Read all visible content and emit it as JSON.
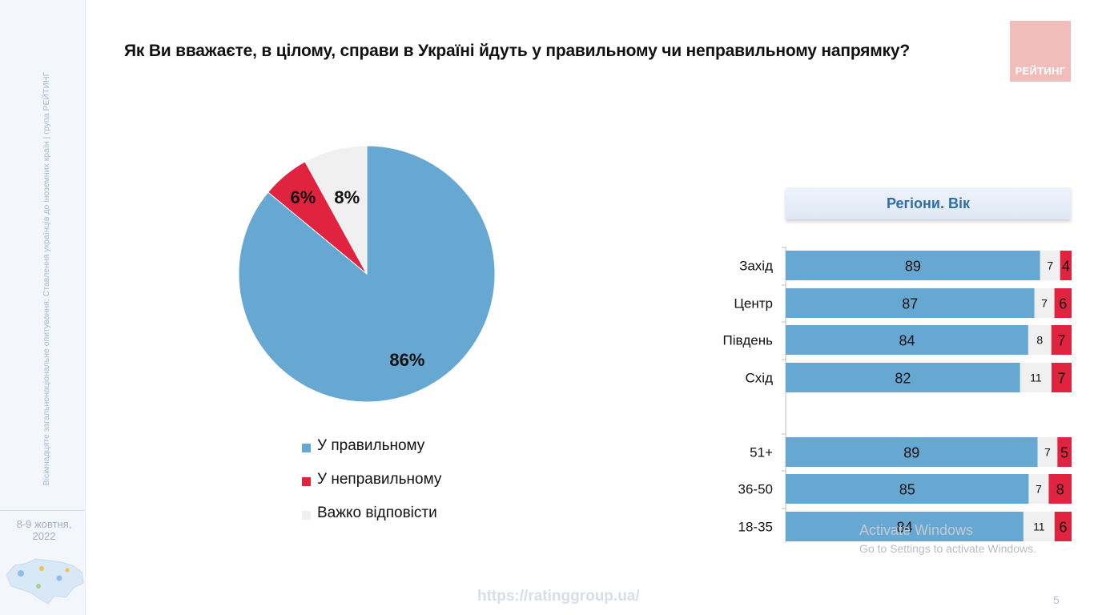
{
  "sidebar": {
    "vertical_text": "Вісімнадцяте загальнонаціональне опитування: Ставлення українців до іноземних країн | група РЕЙТИНГ",
    "date_line1": "8-9 жовтня,",
    "date_line2": "2022"
  },
  "title": "Як Ви вважаєте, в цілому, справи в Україні йдуть у правильному чи неправильному напрямку?",
  "logo_text": "РЕЙТИНГ",
  "colors": {
    "blue": "#67a8d3",
    "red": "#e0243f",
    "gray": "#f0f0f0",
    "accent": "#2e6ea8"
  },
  "legend": [
    {
      "label": "У правильному",
      "color": "#67a8d3"
    },
    {
      "label": "У неправильному",
      "color": "#e0243f"
    },
    {
      "label": "Важко відповісти",
      "color": "#f0f0f0"
    }
  ],
  "chart_data": [
    {
      "type": "pie",
      "title": "",
      "slices": [
        {
          "label": "У правильному",
          "value": 86,
          "display": "86%",
          "color": "#67a8d3"
        },
        {
          "label": "У неправильному",
          "value": 6,
          "display": "6%",
          "color": "#e0243f"
        },
        {
          "label": "Важко відповісти",
          "value": 8,
          "display": "8%",
          "color": "#f0f0f0"
        }
      ]
    },
    {
      "type": "bar",
      "orientation": "horizontal",
      "stacked": true,
      "title": "Регіони. Вік",
      "categories": [
        "Захід",
        "Центр",
        "Південь",
        "Схід",
        "51+",
        "36-50",
        "18-35"
      ],
      "series": [
        {
          "name": "У правильному",
          "color": "#67a8d3",
          "values": [
            89,
            87,
            84,
            82,
            89,
            85,
            84
          ]
        },
        {
          "name": "Важко відповісти",
          "color": "#f0f0f0",
          "values": [
            7,
            7,
            8,
            11,
            7,
            7,
            11
          ]
        },
        {
          "name": "У неправильному",
          "color": "#e0243f",
          "values": [
            4,
            6,
            7,
            7,
            5,
            8,
            6
          ]
        }
      ]
    }
  ],
  "watermark_line1": "Activate Windows",
  "watermark_line2": "Go to Settings to activate Windows.",
  "footer_url": "https://ratinggroup.ua/",
  "page_number": "5"
}
